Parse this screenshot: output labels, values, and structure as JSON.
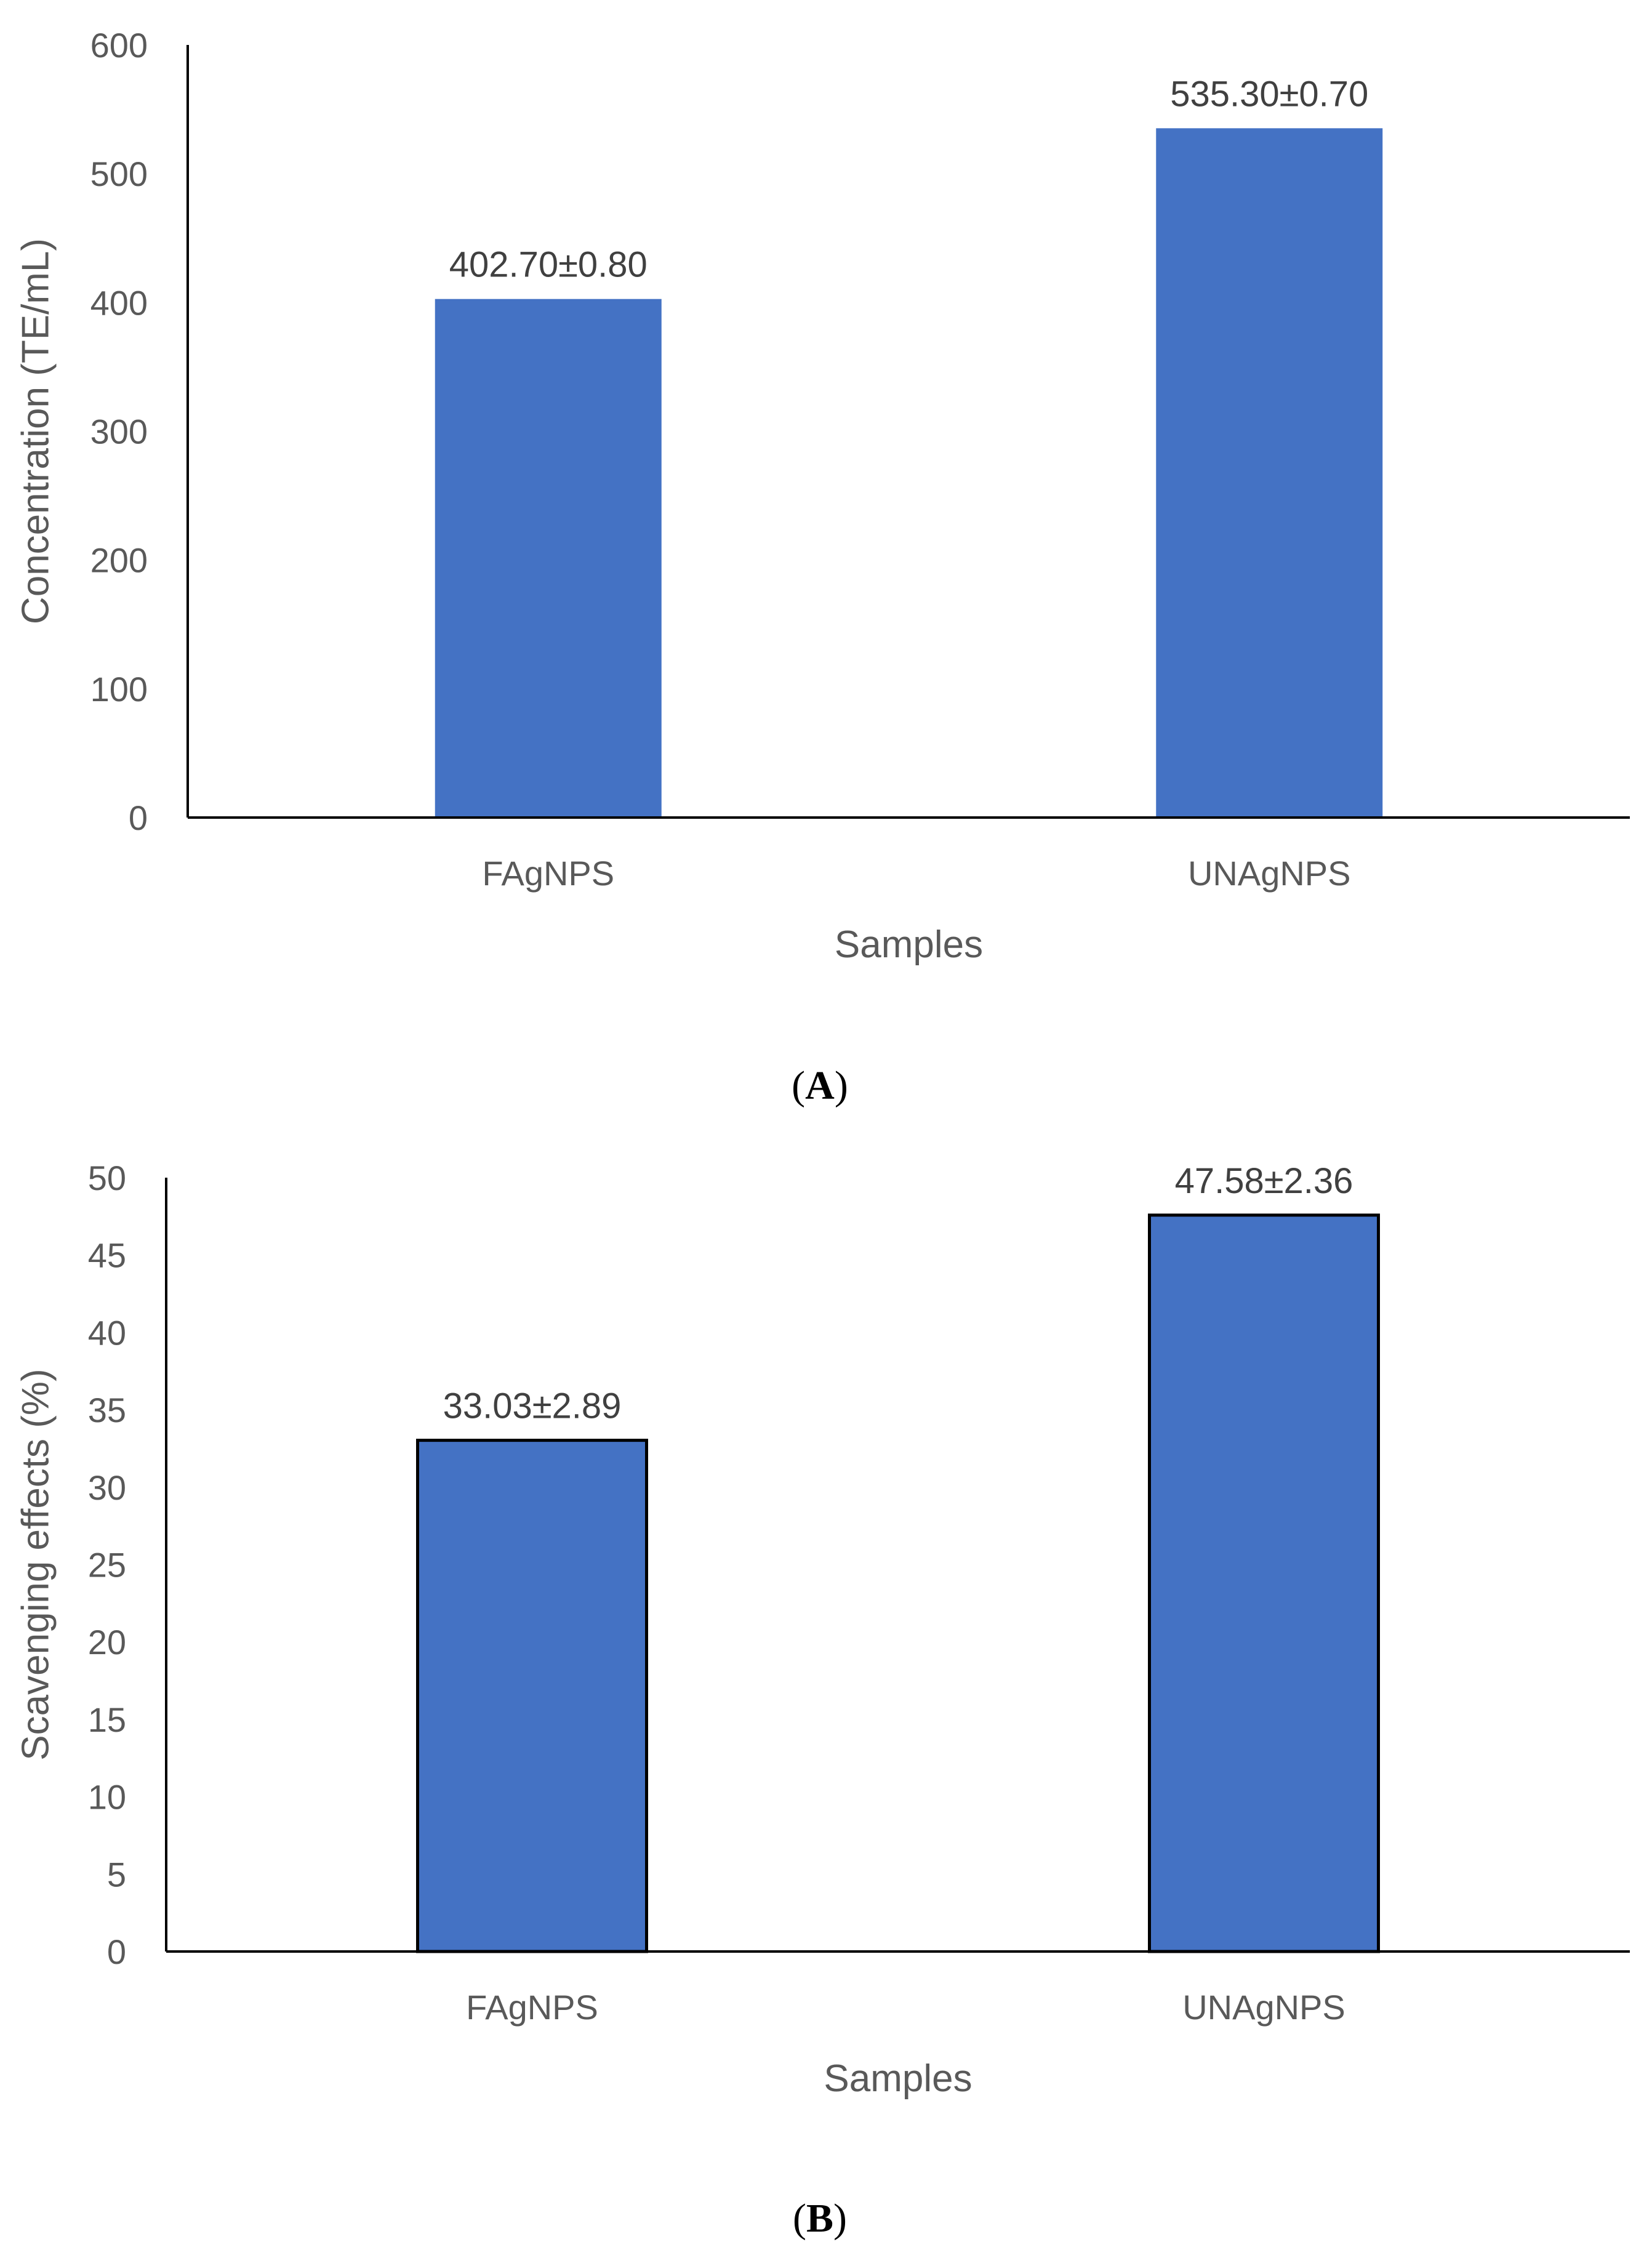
{
  "chart_data": [
    {
      "type": "bar",
      "panel": "A",
      "categories": [
        "FAgNPS",
        "UNAgNPS"
      ],
      "values": [
        402.7,
        535.3
      ],
      "data_labels": [
        "402.70±0.80",
        "535.30±0.70"
      ],
      "xlabel": "Samples",
      "ylabel": "Concentration (TE/mL)",
      "ylim": [
        0,
        600
      ],
      "yticks": [
        0,
        100,
        200,
        300,
        400,
        500,
        600
      ],
      "ytick_labels": [
        "0",
        "100",
        "200",
        "300",
        "400",
        "500",
        "600"
      ],
      "bar_color": "#4472C4",
      "bar_outline": false,
      "grid": false
    },
    {
      "type": "bar",
      "panel": "B",
      "categories": [
        "FAgNPS",
        "UNAgNPS"
      ],
      "values": [
        33.03,
        47.58
      ],
      "data_labels": [
        "33.03±2.89",
        "47.58±2.36"
      ],
      "xlabel": "Samples",
      "ylabel": "Scavenging effects (%)",
      "ylim": [
        0,
        50
      ],
      "yticks": [
        0,
        5,
        10,
        15,
        20,
        25,
        30,
        35,
        40,
        45,
        50
      ],
      "ytick_labels": [
        "0",
        "5",
        "10",
        "15",
        "20",
        "25",
        "30",
        "35",
        "40",
        "45",
        "50"
      ],
      "bar_color": "#4472C4",
      "bar_outline": true,
      "grid": false
    }
  ],
  "panel_labels": {
    "A": {
      "open": "(",
      "letter": "A",
      "close": ")"
    },
    "B": {
      "open": "(",
      "letter": "B",
      "close": ")"
    }
  },
  "colors": {
    "axis": "#000000",
    "tick_text": "#595959",
    "data_label_text": "#404040",
    "bar": "#4472C4"
  }
}
